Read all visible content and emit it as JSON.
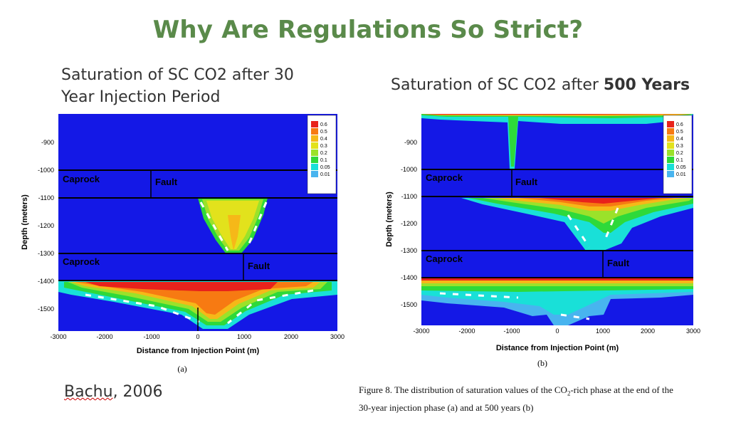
{
  "slide": {
    "title": "Why Are Regulations So Strict?",
    "left_caption": "Saturation of SC CO2 after 30 Year Injection Period",
    "right_caption_prefix": "Saturation of SC CO2 after ",
    "right_caption_bold": "500 Years",
    "citation_name": "Bachu",
    "citation_rest": ", 2006",
    "figure_caption_line1_pre": "Figure 8. The distribution of saturation values of the CO",
    "figure_caption_sub": "2",
    "figure_caption_line1_post": "-rich phase at the end of the",
    "figure_caption_line2": "30-year injection phase (a) and at 500 years (b)"
  },
  "plots": {
    "a": {
      "sublabel": "(a)",
      "ylabel": "Depth (meters)",
      "xlabel": "Distance from Injection Point  (m)",
      "xticks": [
        "-3000",
        "-2000",
        "-1000",
        "0",
        "1000",
        "2000",
        "3000"
      ],
      "yticks": [
        "-900",
        "-1000",
        "-1100",
        "-1200",
        "-1300",
        "-1400",
        "-1500"
      ],
      "caprock_upper": "Caprock",
      "caprock_lower": "Caprock",
      "fault_upper": "Fault",
      "fault_lower": "Fault"
    },
    "b": {
      "sublabel": "(b)",
      "ylabel": "Depth (meters)",
      "xlabel": "Distance from Injection Point  (m)",
      "xticks": [
        "-3000",
        "-2000",
        "-1000",
        "0",
        "1000",
        "2000",
        "3000"
      ],
      "yticks": [
        "-900",
        "-1000",
        "-1100",
        "-1200",
        "-1300",
        "-1400",
        "-1500"
      ],
      "caprock_upper": "Caprock",
      "caprock_lower": "Caprock",
      "fault_upper": "Fault",
      "fault_lower": "Fault"
    }
  },
  "legend": {
    "levels": [
      "0.6",
      "0.5",
      "0.4",
      "0.3",
      "0.2",
      "0.1",
      "0.05",
      "0.01"
    ],
    "colors": [
      "#e8221b",
      "#f77a12",
      "#f6b818",
      "#e2e21c",
      "#9be22a",
      "#2ed93a",
      "#19e0d8",
      "#48b4ef"
    ]
  }
}
